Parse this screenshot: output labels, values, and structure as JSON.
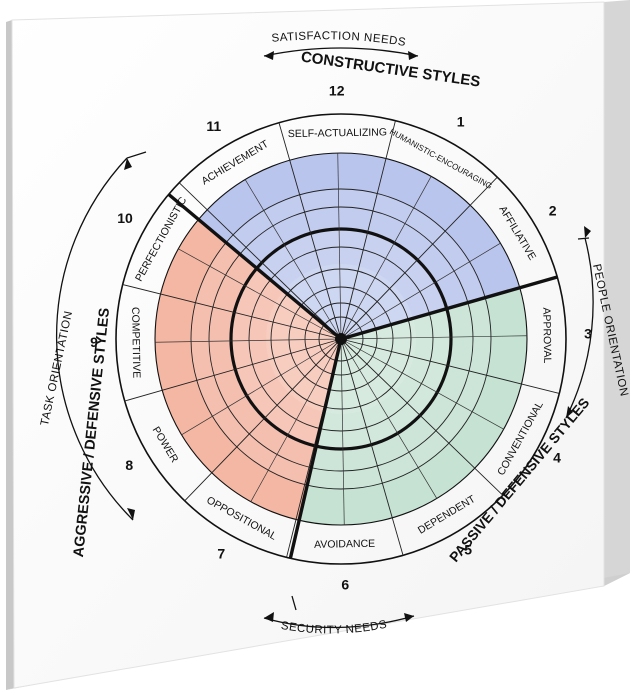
{
  "arc_labels": {
    "top": "SATISFACTION NEEDS",
    "bottom": "SECURITY NEEDS",
    "right": "PEOPLE ORIENTATION",
    "left": "TASK ORIENTATION"
  },
  "clusters": {
    "constructive": "CONSTRUCTIVE STYLES",
    "passive": "PASSIVE / DEFENSIVE STYLES",
    "aggressive": "AGGRESSIVE / DEFENSIVE STYLES"
  },
  "colors": {
    "constructive": "#b9c5ec",
    "passive": "#c5e2d3",
    "aggressive": "#f4b7a4"
  },
  "sectors": [
    {
      "number": "1",
      "name": "HUMANISTIC-ENCOURAGING",
      "cluster": "constructive"
    },
    {
      "number": "2",
      "name": "AFFILIATIVE",
      "cluster": "constructive"
    },
    {
      "number": "3",
      "name": "APPROVAL",
      "cluster": "passive"
    },
    {
      "number": "4",
      "name": "CONVENTIONAL",
      "cluster": "passive"
    },
    {
      "number": "5",
      "name": "DEPENDENT",
      "cluster": "passive"
    },
    {
      "number": "6",
      "name": "AVOIDANCE",
      "cluster": "passive"
    },
    {
      "number": "7",
      "name": "OPPOSITIONAL",
      "cluster": "aggressive"
    },
    {
      "number": "8",
      "name": "POWER",
      "cluster": "aggressive"
    },
    {
      "number": "9",
      "name": "COMPETITIVE",
      "cluster": "aggressive"
    },
    {
      "number": "10",
      "name": "PERFECTIONISTIC",
      "cluster": "aggressive"
    },
    {
      "number": "11",
      "name": "ACHIEVEMENT",
      "cluster": "constructive"
    },
    {
      "number": "12",
      "name": "SELF-ACTUALIZING",
      "cluster": "constructive"
    }
  ]
}
